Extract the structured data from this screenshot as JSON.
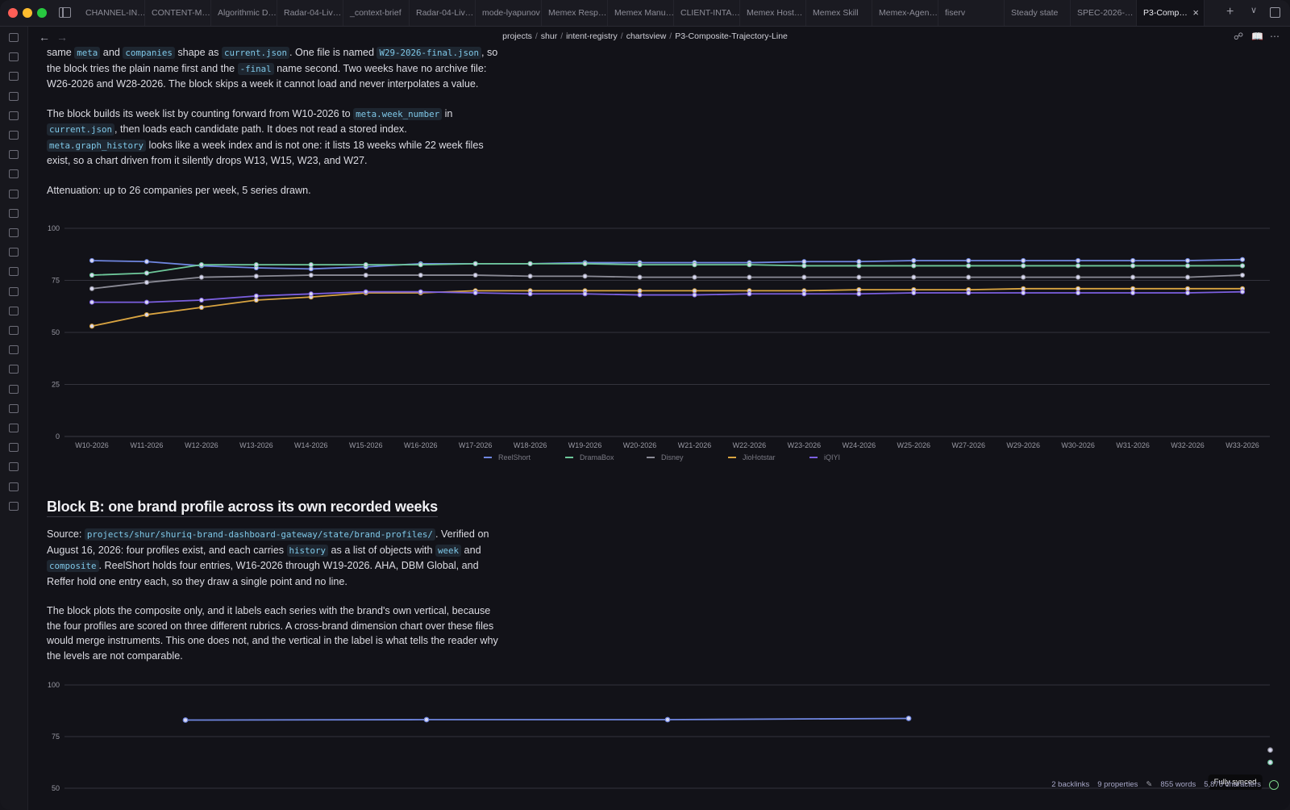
{
  "tabs": [
    {
      "label": "CHANNEL-IN…",
      "w": 82
    },
    {
      "label": "CONTENT-M…",
      "w": 82
    },
    {
      "label": "Algorithmic D…",
      "w": 82
    },
    {
      "label": "Radar-04-Liv…",
      "w": 82
    },
    {
      "label": "_context-brief",
      "w": 82
    },
    {
      "label": "Radar-04-Liv…",
      "w": 82
    },
    {
      "label": "mode-lyapunov",
      "w": 82
    },
    {
      "label": "Memex Resp…",
      "w": 82
    },
    {
      "label": "Memex Manu…",
      "w": 82
    },
    {
      "label": "CLIENT-INTA…",
      "w": 82
    },
    {
      "label": "Memex Host…",
      "w": 82
    },
    {
      "label": "Memex Skill",
      "w": 82
    },
    {
      "label": "Memex-Agen…",
      "w": 82
    },
    {
      "label": "fiserv",
      "w": 82
    },
    {
      "label": "Steady state",
      "w": 82
    },
    {
      "label": "SPEC-2026-…",
      "w": 82
    },
    {
      "label": "P3-Comp…",
      "w": 84,
      "active": true
    }
  ],
  "breadcrumb": [
    "projects",
    "shur",
    "intent-registry",
    "chartsview",
    "P3-Composite-Trajectory-Line"
  ],
  "doc": {
    "p1": {
      "t1": "same ",
      "c1": "meta",
      "t2": " and ",
      "c2": "companies",
      "t3": " shape as ",
      "c3": "current.json",
      "t4": ". One file is named ",
      "c4": "W29-2026-final.json",
      "t5": ", so the block tries the plain name first and the ",
      "c5": "-final",
      "t6": " name second. Two weeks have no archive file: W26-2026 and W28-2026. The block skips a week it cannot load and never interpolates a value."
    },
    "p2": {
      "t1": "The block builds its week list by counting forward from W10-2026 to ",
      "c1": "meta.week_number",
      "t2": " in ",
      "c2": "current.json",
      "t3": ", then loads each candidate path. It does not read a stored index. ",
      "c3": "meta.graph_history",
      "t4": " looks like a week index and is not one: it lists 18 weeks while 22 week files exist, so a chart driven from it silently drops W13, W15, W23, and W27."
    },
    "p3": "Attenuation: up to 26 companies per week, 5 series drawn.",
    "heading": "Block B: one brand profile across its own recorded weeks",
    "p4": {
      "t1": "Source: ",
      "c1": "projects/shur/shuriq-brand-dashboard-gateway/state/brand-profiles/",
      "t2": ". Verified on August 16, 2026: four profiles exist, and each carries ",
      "c2": "history",
      "t3": " as a list of objects with ",
      "c3": "week",
      "t4": " and ",
      "c4": "composite",
      "t5": ". ReelShort holds four entries, W16-2026 through W19-2026. AHA, DBM Global, and Reffer hold one entry each, so they draw a single point and no line."
    },
    "p5": "The block plots the composite only, and it labels each series with the brand's own vertical, because the four profiles are scored on three different rubrics. A cross-brand dimension chart over these files would merge instruments. This one does not, and the vertical in the label is what tells the reader why the levels are not comparable."
  },
  "chart_data": [
    {
      "type": "line",
      "x": [
        "W10-2026",
        "W11-2026",
        "W12-2026",
        "W13-2026",
        "W14-2026",
        "W15-2026",
        "W16-2026",
        "W17-2026",
        "W18-2026",
        "W19-2026",
        "W20-2026",
        "W21-2026",
        "W22-2026",
        "W23-2026",
        "W24-2026",
        "W25-2026",
        "W27-2026",
        "W29-2026",
        "W30-2026",
        "W31-2026",
        "W32-2026",
        "W33-2026"
      ],
      "yticks": [
        0,
        25,
        50,
        75,
        100
      ],
      "ylim": [
        0,
        100
      ],
      "legend": "bottom-center",
      "grid": true,
      "series": [
        {
          "name": "ReelShort",
          "color": "#6f86e0",
          "values": [
            84.5,
            84,
            82,
            81,
            80.5,
            81.5,
            83,
            83,
            83,
            83.5,
            83.5,
            83.5,
            83.5,
            84,
            84,
            84.5,
            84.5,
            84.5,
            84.5,
            84.5,
            84.5,
            85
          ]
        },
        {
          "name": "DramaBox",
          "color": "#6ec89a",
          "values": [
            77.5,
            78.5,
            82.5,
            82.5,
            82.5,
            82.5,
            82.5,
            83,
            83,
            83,
            82.5,
            82.5,
            82.5,
            82,
            82,
            82,
            82,
            82,
            82,
            82,
            82,
            82
          ]
        },
        {
          "name": "Disney",
          "color": "#8b8b96",
          "values": [
            71,
            74,
            76.5,
            77,
            77.5,
            77.5,
            77.5,
            77.5,
            77,
            77,
            76.5,
            76.5,
            76.5,
            76.5,
            76.5,
            76.5,
            76.5,
            76.5,
            76.5,
            76.5,
            76.5,
            77.5
          ]
        },
        {
          "name": "JioHotstar",
          "color": "#d9a441",
          "values": [
            53,
            58.5,
            62,
            65.5,
            67,
            69,
            69,
            70,
            70,
            70,
            70,
            70,
            70,
            70,
            70.5,
            70.5,
            70.5,
            71,
            71,
            71,
            71,
            71
          ]
        },
        {
          "name": "iQIYI",
          "color": "#7b5fe0",
          "values": [
            64.5,
            64.5,
            65.5,
            67.5,
            68.5,
            69.5,
            69.5,
            69,
            68.5,
            68.5,
            68,
            68,
            68.5,
            68.5,
            68.5,
            69,
            69,
            69,
            69,
            69,
            69,
            69.5
          ]
        }
      ]
    },
    {
      "type": "line",
      "yticks": [
        50,
        75,
        100
      ],
      "series": [
        {
          "color": "#6f86e0",
          "points": [
            [
              0,
              83
            ],
            [
              1,
              83.2
            ],
            [
              2,
              83.2
            ],
            [
              3,
              83.8
            ]
          ]
        },
        {
          "color": "#8b8b96",
          "points": [
            [
              4.5,
              68.5
            ]
          ]
        },
        {
          "color": "#6ec89a",
          "points": [
            [
              4.5,
              62.5
            ]
          ]
        }
      ]
    }
  ],
  "status": {
    "backlinks": "2 backlinks",
    "properties": "9 properties",
    "words": "855 words",
    "characters": "5,870 characters",
    "tooltip": "Fully synced"
  }
}
